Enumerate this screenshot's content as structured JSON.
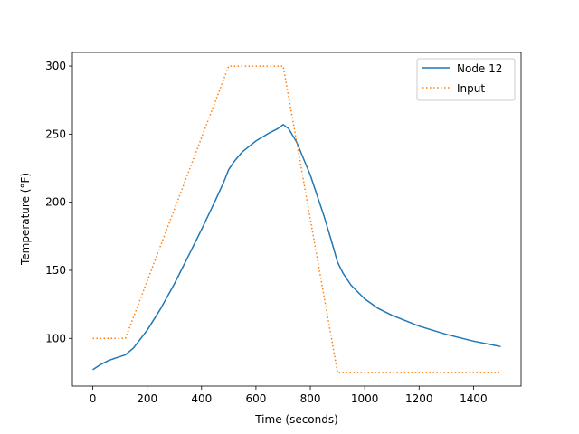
{
  "chart_data": {
    "type": "line",
    "title": "",
    "xlabel": "Time (seconds)",
    "ylabel": "Temperature (°F)",
    "xlim": [
      -75,
      1575
    ],
    "ylim": [
      65,
      310
    ],
    "xticks": [
      0,
      200,
      400,
      600,
      800,
      1000,
      1200,
      1400
    ],
    "yticks": [
      100,
      150,
      200,
      250,
      300
    ],
    "grid": false,
    "legend": "top-right",
    "series": [
      {
        "name": "Node 12",
        "color": "#1f77b4",
        "style": "solid",
        "x": [
          0,
          30,
          60,
          90,
          120,
          150,
          200,
          250,
          300,
          350,
          400,
          450,
          480,
          500,
          520,
          550,
          600,
          650,
          680,
          700,
          720,
          750,
          800,
          850,
          880,
          900,
          920,
          950,
          1000,
          1050,
          1100,
          1200,
          1300,
          1400,
          1500
        ],
        "y": [
          77,
          81,
          84,
          86,
          88,
          93,
          106,
          122,
          140,
          160,
          180,
          201,
          214,
          224,
          230,
          237,
          245,
          251,
          254,
          257,
          254,
          244,
          220,
          190,
          170,
          156,
          148,
          139,
          129,
          122,
          117,
          109,
          103,
          98,
          94
        ]
      },
      {
        "name": "Input",
        "color": "#ff7f0e",
        "style": "dotted",
        "x": [
          0,
          120,
          500,
          700,
          900,
          1500
        ],
        "y": [
          100,
          100,
          300,
          300,
          75,
          75
        ]
      }
    ]
  }
}
